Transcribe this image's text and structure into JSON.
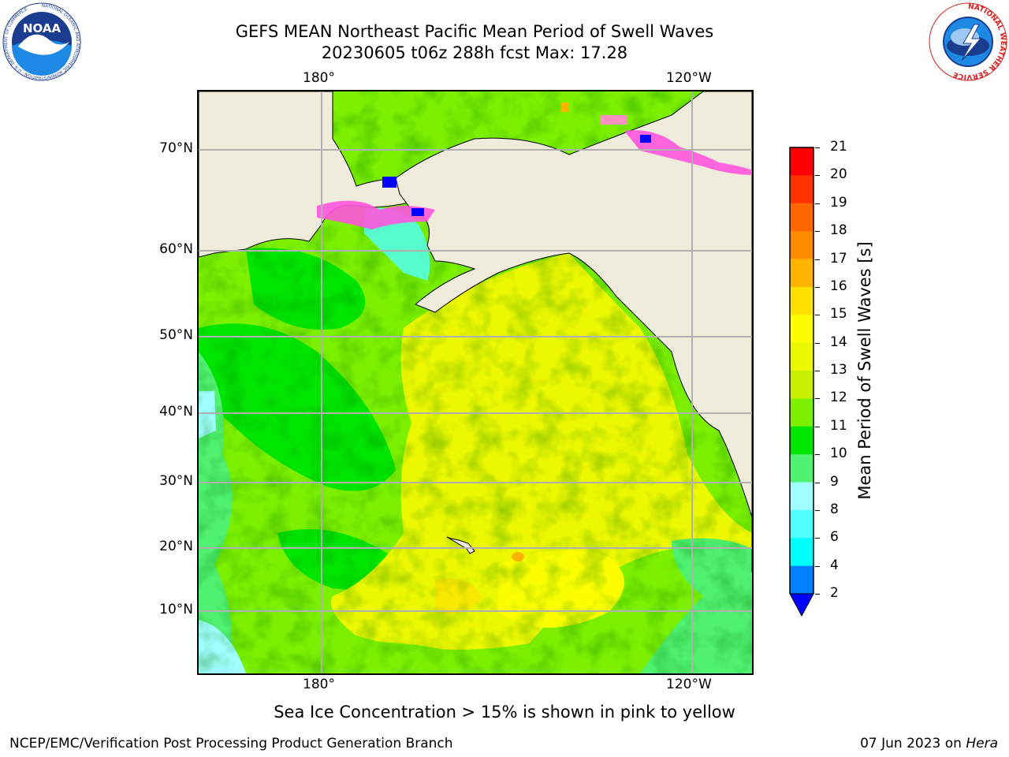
{
  "header": {
    "title_line1": "GEFS MEAN Northeast Pacific Mean Period of Swell Waves",
    "title_line2": "20230605 t06z 288h fcst   Max: 17.28"
  },
  "logos": {
    "noaa_text": "NOAA",
    "noaa_ring": "NATIONAL OCEANIC AND ATMOSPHERIC ADMINISTRATION · U.S. DEPARTMENT OF COMMERCE",
    "nws_ring": "NATIONAL WEATHER SERVICE"
  },
  "map": {
    "lon_labels": [
      "180°",
      "120°W"
    ],
    "lat_labels": [
      "70°N",
      "60°N",
      "50°N",
      "40°N",
      "30°N",
      "20°N",
      "10°N"
    ],
    "colors": {
      "land": "#efecdc",
      "grid": "#b0b0b0",
      "ocean_green": "#7cf000",
      "ocean_yellow": "#ecf800"
    }
  },
  "colorbar": {
    "label": "Mean Period of Swell Waves [s]",
    "ticks": [
      "21",
      "20",
      "19",
      "18",
      "17",
      "16",
      "15",
      "14",
      "13",
      "12",
      "11",
      "10",
      "9",
      "8",
      "6",
      "4",
      "2"
    ],
    "colors": [
      "#ff0000",
      "#ff3300",
      "#ff6600",
      "#ff8c00",
      "#ffb400",
      "#ffe100",
      "#fdff00",
      "#ecf800",
      "#c8f000",
      "#7cf000",
      "#00e600",
      "#50f070",
      "#a0ffff",
      "#50ffff",
      "#00ffff",
      "#0080ff"
    ],
    "under_color": "#0000ff"
  },
  "footer": {
    "note": "Sea Ice Concentration > 15% is shown in pink to yellow",
    "org": "NCEP/EMC/Verification Post Processing Product Generation Branch",
    "date": "07 Jun 2023 on ",
    "host": "Hera"
  }
}
